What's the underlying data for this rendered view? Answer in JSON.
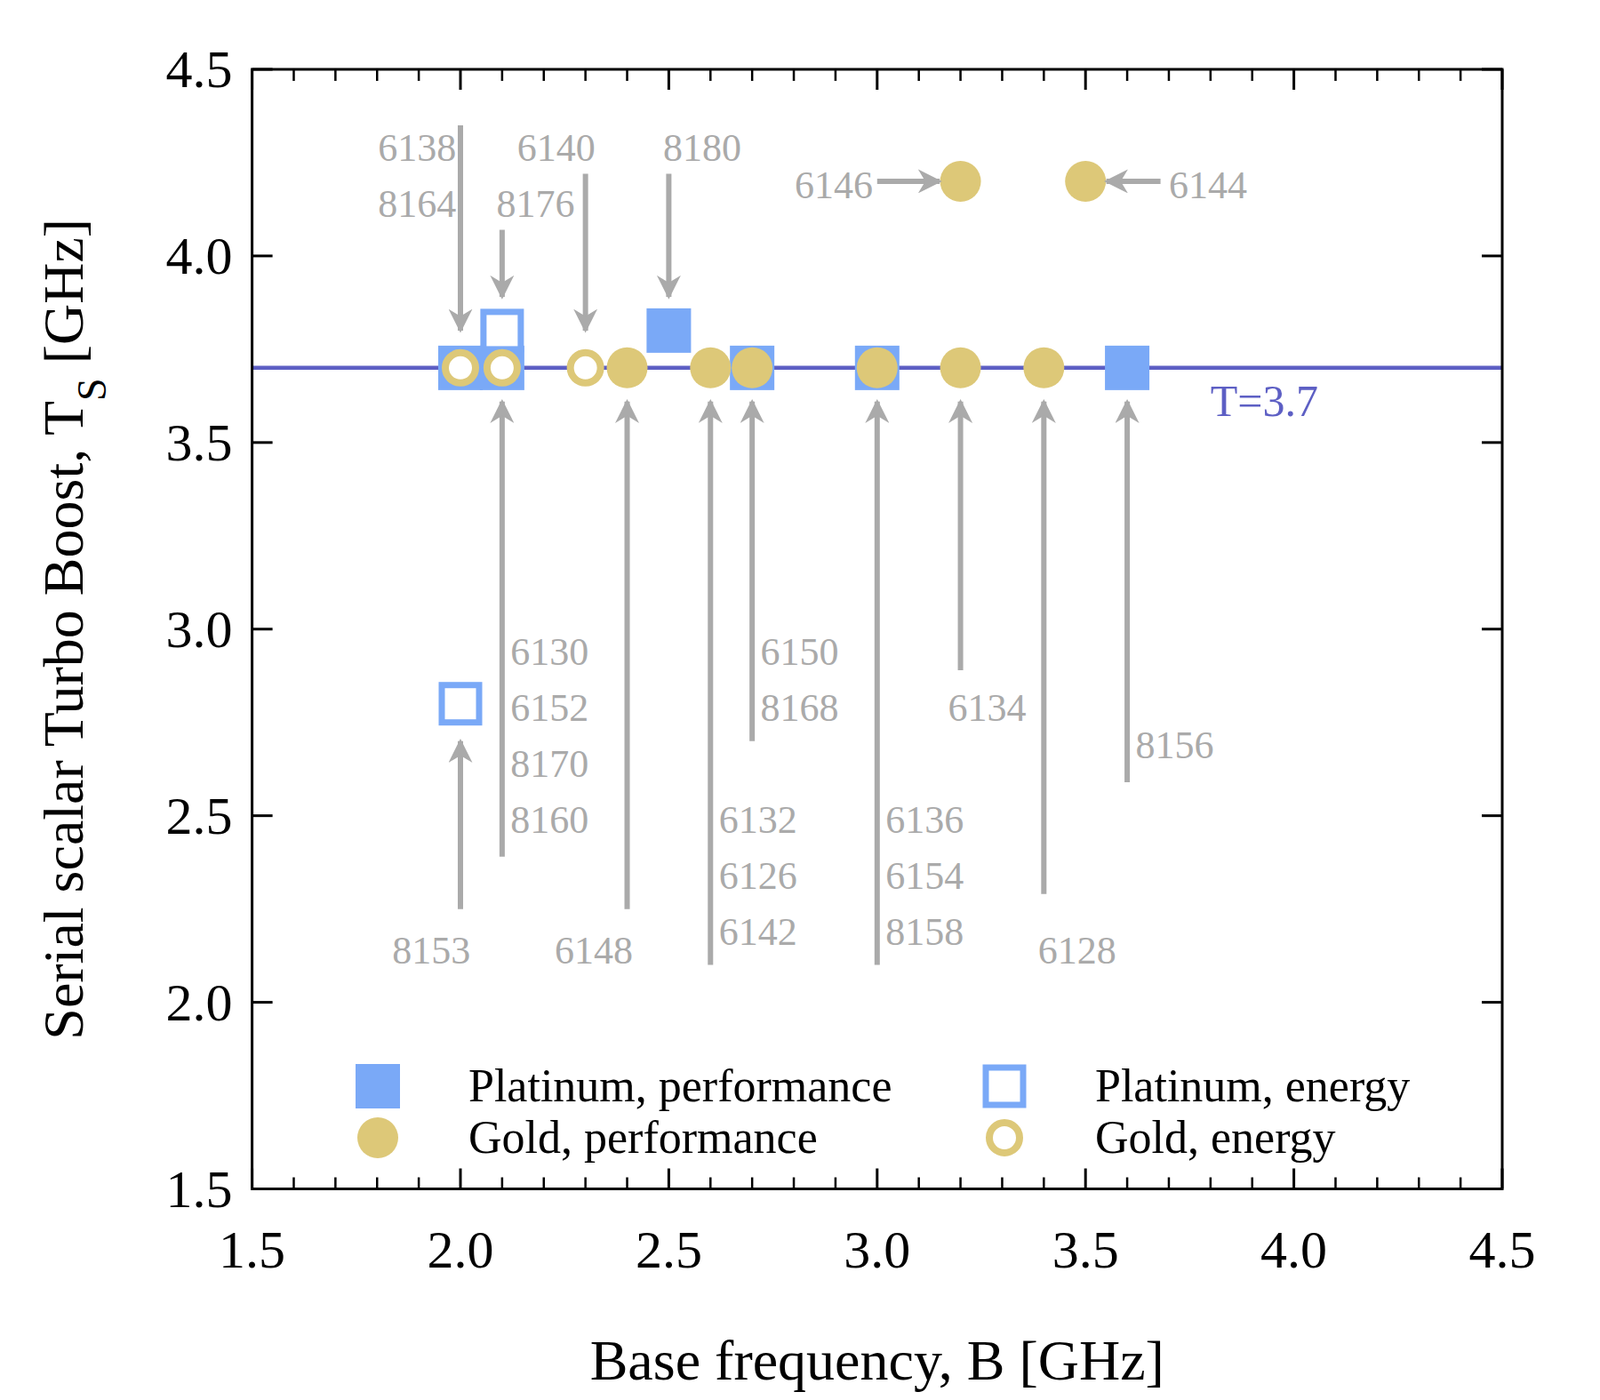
{
  "chart_data": {
    "type": "scatter",
    "xlabel": "Base frequency, B [GHz]",
    "ylabel": [
      "Serial scalar Turbo Boost, T",
      "S",
      " [GHz]"
    ],
    "xlim": [
      1.5,
      4.5
    ],
    "ylim": [
      1.5,
      4.5
    ],
    "xticks": [
      1.5,
      {
        "value": 2,
        "label": "2.0"
      },
      2.5,
      {
        "value": 3,
        "label": "3.0"
      },
      3.5,
      {
        "value": 4,
        "label": "4.0"
      },
      4.5
    ],
    "yticks": [
      1.5,
      {
        "value": 2,
        "label": "2.0"
      },
      2.5,
      {
        "value": 3,
        "label": "3.0"
      },
      3.5,
      {
        "value": 4,
        "label": "4.0"
      },
      4.5
    ],
    "xticks_minor": [
      1.6,
      1.7,
      1.8,
      1.9,
      2.1,
      2.2,
      2.3,
      2.4,
      2.6,
      2.7,
      2.8,
      2.9,
      3.1,
      3.2,
      3.3,
      3.4,
      3.6,
      3.7,
      3.8,
      3.9,
      4.1,
      4.2,
      4.3,
      4.4
    ],
    "legend": "bottom",
    "series": [
      {
        "name": "Platinum, performance",
        "color": "#7aa9f7",
        "marker": "filled-square",
        "x": [
          2.0,
          2.1,
          2.5,
          2.7,
          3.0,
          3.6
        ],
        "values": [
          3.7,
          3.7,
          3.8,
          3.7,
          3.7,
          3.7
        ]
      },
      {
        "name": "Platinum, energy",
        "color": "#7aa9f7",
        "marker": "open-square",
        "x": [
          2.0,
          2.1
        ],
        "values": [
          2.8,
          3.8
        ]
      },
      {
        "name": "Gold, performance",
        "color": "#ddc878",
        "marker": "filled-circle",
        "x": [
          2.4,
          2.6,
          2.7,
          3.0,
          3.2,
          3.4,
          3.2,
          3.5
        ],
        "values": [
          3.7,
          3.7,
          3.7,
          3.7,
          3.7,
          3.7,
          4.2,
          4.2
        ]
      },
      {
        "name": "Gold, energy",
        "color": "#ddc878",
        "marker": "open-circle",
        "x": [
          2.0,
          2.1,
          2.3
        ],
        "values": [
          3.7,
          3.7,
          3.7
        ]
      }
    ],
    "reference_line": {
      "y": 3.7,
      "label": "T=3.7",
      "color": "#5d5fc4",
      "label_x": 3.8,
      "label_y": 3.61
    },
    "annotations": [
      {
        "text": [
          "6138",
          "8164"
        ],
        "label_x": 1.99,
        "label_y": 4.29,
        "align": "end",
        "arrow_from": [
          2.0,
          4.35
        ],
        "arrow_to": [
          2.0,
          3.8
        ]
      },
      {
        "text": [
          "6140"
        ],
        "label_x": 2.23,
        "label_y": 4.29,
        "align": "middle",
        "arrow_from": [
          2.3,
          4.22
        ],
        "arrow_to": [
          2.3,
          3.8
        ]
      },
      {
        "text": [
          "8176"
        ],
        "label_x": 2.18,
        "label_y": 4.14,
        "align": "middle",
        "arrow_from": [
          2.1,
          4.07
        ],
        "arrow_to": [
          2.1,
          3.89
        ]
      },
      {
        "text": [
          "8180"
        ],
        "label_x": 2.58,
        "label_y": 4.29,
        "align": "middle",
        "arrow_from": [
          2.5,
          4.22
        ],
        "arrow_to": [
          2.5,
          3.89
        ]
      },
      {
        "text": [
          "6146"
        ],
        "label_x": 2.99,
        "label_y": 4.19,
        "align": "end",
        "arrow_from": [
          3.0,
          4.2
        ],
        "arrow_to": [
          3.15,
          4.2
        ]
      },
      {
        "text": [
          "6144"
        ],
        "label_x": 3.7,
        "label_y": 4.19,
        "align": "start",
        "arrow_from": [
          3.68,
          4.2
        ],
        "arrow_to": [
          3.55,
          4.2
        ]
      },
      {
        "text": [
          "6130",
          "6152",
          "8170",
          "8160"
        ],
        "label_x": 2.12,
        "label_y": 2.94,
        "align": "start",
        "arrow_from": [
          2.1,
          2.39
        ],
        "arrow_to": [
          2.1,
          3.61
        ]
      },
      {
        "text": [
          "8153"
        ],
        "label_x": 1.93,
        "label_y": 2.14,
        "align": "middle",
        "arrow_from": [
          2.0,
          2.25
        ],
        "arrow_to": [
          2.0,
          2.7
        ]
      },
      {
        "text": [
          "6148"
        ],
        "label_x": 2.32,
        "label_y": 2.14,
        "align": "middle",
        "arrow_from": [
          2.4,
          2.25
        ],
        "arrow_to": [
          2.4,
          3.61
        ]
      },
      {
        "text": [
          "6132",
          "6126",
          "6142"
        ],
        "label_x": 2.62,
        "label_y": 2.49,
        "align": "start",
        "arrow_from": [
          2.6,
          2.1
        ],
        "arrow_to": [
          2.6,
          3.61
        ]
      },
      {
        "text": [
          "6150",
          "8168"
        ],
        "label_x": 2.72,
        "label_y": 2.94,
        "align": "start",
        "arrow_from": [
          2.7,
          2.7
        ],
        "arrow_to": [
          2.7,
          3.61
        ]
      },
      {
        "text": [
          "6136",
          "6154",
          "8158"
        ],
        "label_x": 3.02,
        "label_y": 2.49,
        "align": "start",
        "arrow_from": [
          3.0,
          2.1
        ],
        "arrow_to": [
          3.0,
          3.61
        ]
      },
      {
        "text": [
          "6134"
        ],
        "label_x": 3.17,
        "label_y": 2.79,
        "align": "start",
        "arrow_from": [
          3.2,
          2.89
        ],
        "arrow_to": [
          3.2,
          3.61
        ]
      },
      {
        "text": [
          "6128"
        ],
        "label_x": 3.48,
        "label_y": 2.14,
        "align": "middle",
        "arrow_from": [
          3.4,
          2.29
        ],
        "arrow_to": [
          3.4,
          3.61
        ]
      },
      {
        "text": [
          "8156"
        ],
        "label_x": 3.62,
        "label_y": 2.69,
        "align": "start",
        "arrow_from": [
          3.6,
          2.59
        ],
        "arrow_to": [
          3.6,
          3.61
        ]
      }
    ]
  }
}
